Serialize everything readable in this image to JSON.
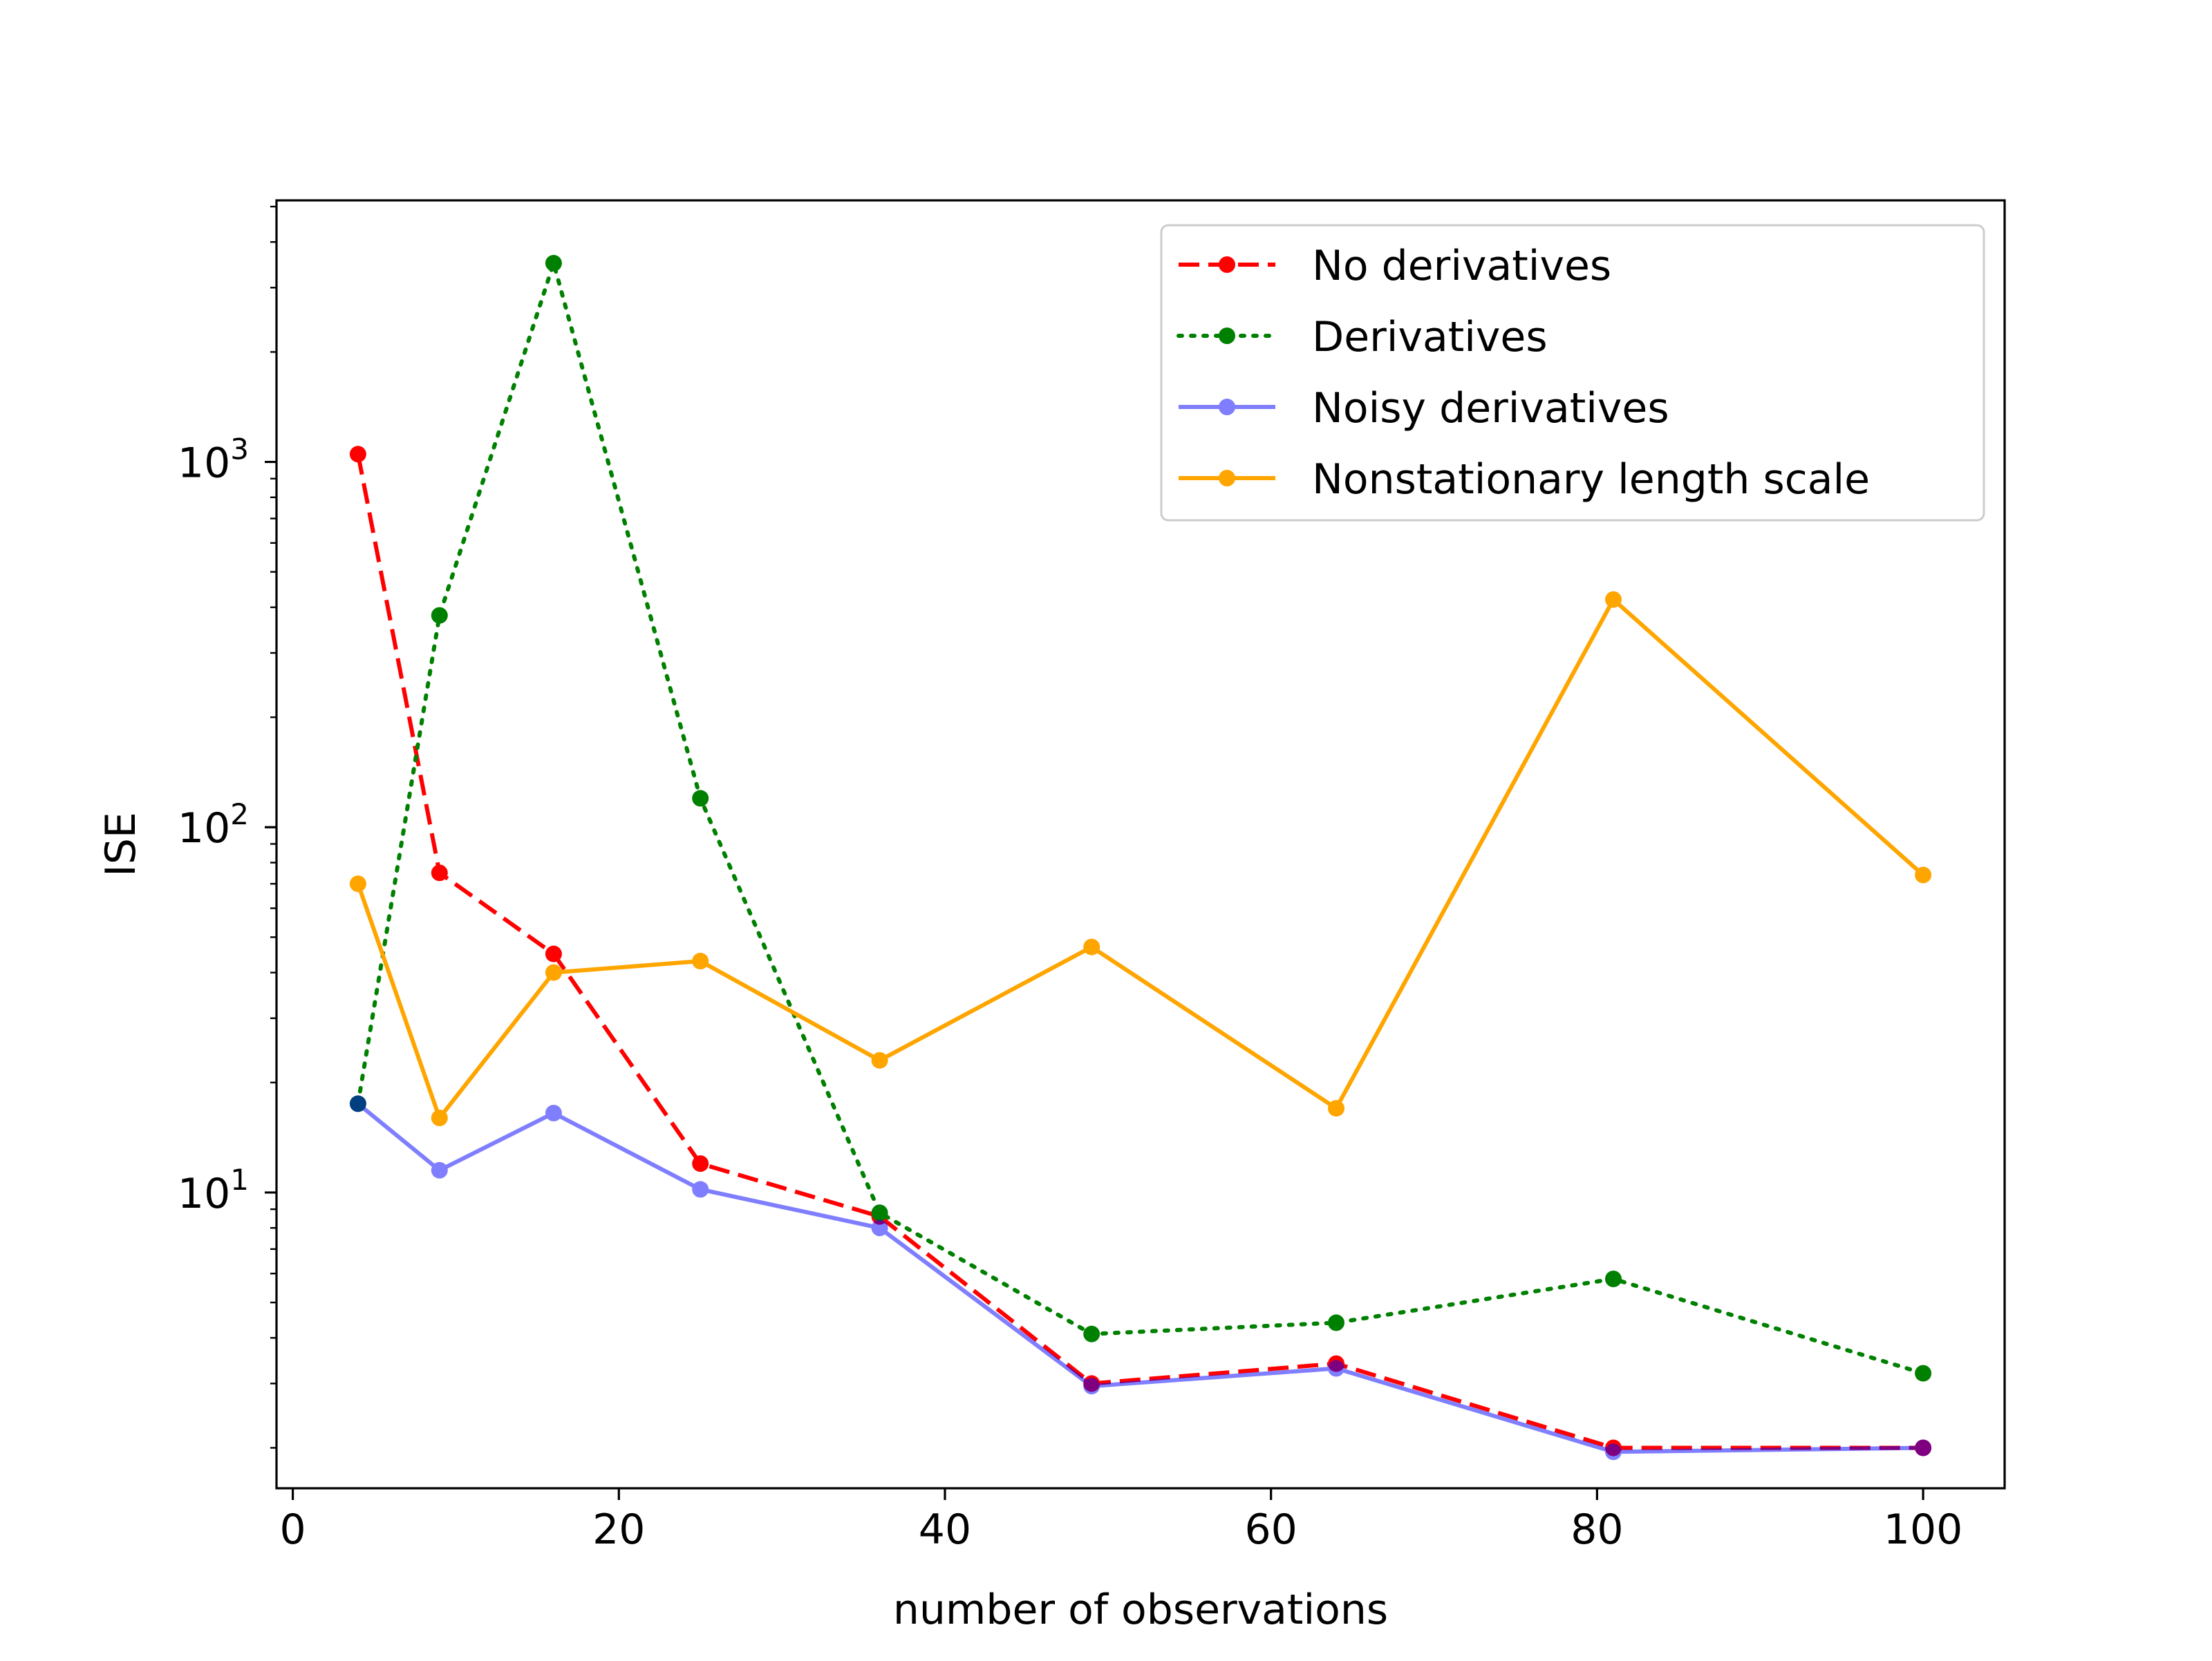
{
  "chart_data": {
    "type": "line",
    "title": "",
    "xlabel": "number of observations",
    "ylabel": "ISE",
    "x": [
      4,
      9,
      16,
      25,
      36,
      49,
      64,
      81,
      100
    ],
    "xlim": [
      -1,
      105
    ],
    "ylim": [
      1.55,
      5200
    ],
    "yscale": "log",
    "xticks": [
      0,
      20,
      40,
      60,
      80,
      100
    ],
    "xtick_labels": [
      "0",
      "20",
      "40",
      "60",
      "80",
      "100"
    ],
    "yticks": [
      {
        "value": 10,
        "base": "10",
        "exponent": "1"
      },
      {
        "value": 100,
        "base": "10",
        "exponent": "2"
      },
      {
        "value": 1000,
        "base": "10",
        "exponent": "3"
      }
    ],
    "grid": false,
    "legend_position": "top-right",
    "series": [
      {
        "name": "No derivatives",
        "color": "#ff0000",
        "dash": "dashed",
        "opacity": 1,
        "values": [
          1050,
          75,
          45,
          12,
          8.6,
          3.0,
          3.4,
          2.0,
          2.0
        ]
      },
      {
        "name": "Derivatives",
        "color": "#008000",
        "dash": "dotted",
        "opacity": 1,
        "values": [
          17.5,
          380,
          3500,
          120,
          8.8,
          4.1,
          4.4,
          5.8,
          3.2
        ]
      },
      {
        "name": "Noisy derivatives",
        "color": "#0000ff",
        "dash": "solid",
        "opacity": 0.5,
        "values": [
          17.5,
          11.5,
          16.5,
          10.2,
          8.0,
          2.95,
          3.3,
          1.95,
          2.0
        ]
      },
      {
        "name": "Nonstationary length scale",
        "color": "#ffa500",
        "dash": "solid",
        "opacity": 1,
        "values": [
          70,
          16,
          40,
          43,
          23,
          47,
          17,
          420,
          74
        ]
      }
    ]
  }
}
